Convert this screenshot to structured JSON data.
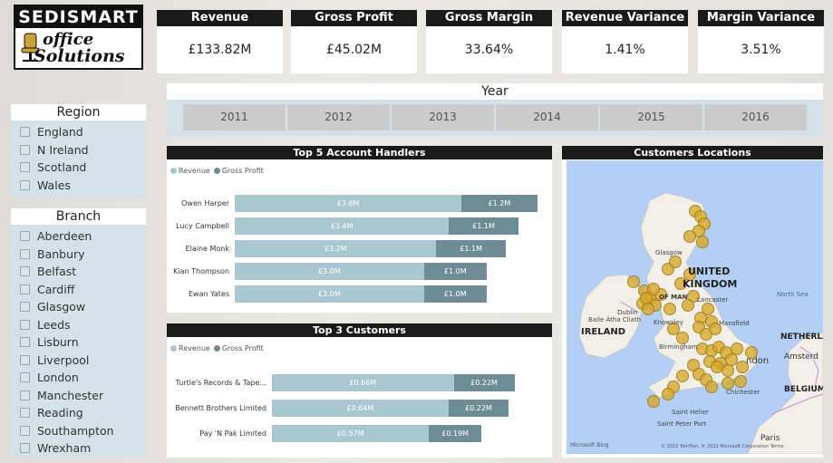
{
  "logo": {
    "top_text": "SEDISMART",
    "middle_text": "office",
    "bottom_text": "Solutions"
  },
  "kpis": [
    {
      "title": "Revenue",
      "value": "£133.82M"
    },
    {
      "title": "Gross Profit",
      "value": "£45.02M"
    },
    {
      "title": "Gross Margin",
      "value": "33.64%"
    },
    {
      "title": "Revenue Variance",
      "value": "1.41%"
    },
    {
      "title": "Margin Variance",
      "value": "3.51%"
    }
  ],
  "year_slicer": {
    "title": "Year",
    "options": [
      "2011",
      "2012",
      "2013",
      "2014",
      "2015",
      "2016"
    ]
  },
  "region_slicer": {
    "title": "Region",
    "items": [
      "England",
      "N Ireland",
      "Scotland",
      "Wales"
    ]
  },
  "branch_slicer": {
    "title": "Branch",
    "items": [
      "Aberdeen",
      "Banbury",
      "Belfast",
      "Cardiff",
      "Glasgow",
      "Leeds",
      "Lisburn",
      "Liverpool",
      "London",
      "Manchester",
      "Reading",
      "Southampton",
      "Wrexham"
    ]
  },
  "colors": {
    "revenue": "#a8c7d1",
    "gross_profit": "#6e8c96"
  },
  "chart_data": [
    {
      "type": "bar",
      "title": "Top 5 Account Handlers",
      "legend": [
        "Revenue",
        "Gross Profit"
      ],
      "categories": [
        "Owen Harper",
        "Lucy Campbell",
        "Elaine Monk",
        "Kian Thompson",
        "Ewan Yates"
      ],
      "series": [
        {
          "name": "Revenue",
          "values": [
            3.6,
            3.4,
            3.2,
            3.0,
            3.0
          ],
          "labels": [
            "£3.6M",
            "£3.4M",
            "£3.2M",
            "£3.0M",
            "£3.0M"
          ]
        },
        {
          "name": "Gross Profit",
          "values": [
            1.2,
            1.1,
            1.1,
            1.0,
            1.0
          ],
          "labels": [
            "£1.2M",
            "£1.1M",
            "£1.1M",
            "£1.0M",
            "£1.0M"
          ]
        }
      ],
      "stacked": true,
      "orientation": "horizontal"
    },
    {
      "type": "bar",
      "title": "Top 3 Customers",
      "legend": [
        "Revenue",
        "Gross Profit"
      ],
      "categories": [
        "Turtle's Records & Tape...",
        "Bennett Brothers Limited",
        "Pay 'N Pak Limited"
      ],
      "series": [
        {
          "name": "Revenue",
          "values": [
            0.66,
            0.64,
            0.57
          ],
          "labels": [
            "£0.66M",
            "£0.64M",
            "£0.57M"
          ]
        },
        {
          "name": "Gross Profit",
          "values": [
            0.22,
            0.22,
            0.19
          ],
          "labels": [
            "£0.22M",
            "£0.22M",
            "£0.19M"
          ]
        }
      ],
      "stacked": true,
      "orientation": "horizontal"
    }
  ],
  "map": {
    "title": "Customers Locations",
    "place_labels": {
      "uk": "UNITED",
      "uk2": "KINGDOM",
      "ireland": "IRELAND",
      "glasgow": "Glasgow",
      "dublin": "Dublin",
      "baile": "Baile Átha Cliath",
      "isle_of_man": "OF MAN",
      "knowsley": "Knowsley",
      "lancaster": "Lancaster",
      "mansfield": "Mansfield",
      "birmingham": "Birmingham",
      "london": "ndon",
      "chichester": "Chichester",
      "saint_helier": "Saint Helier",
      "saint_peter": "Saint Peter Port",
      "north_sea": "North Sea",
      "netherlands": "NETHERLA",
      "amsterdam": "Amsterd",
      "belgium": "BELGIUM",
      "paris": "Paris"
    },
    "attribution_left": "Microsoft Bing",
    "attribution_right": "© 2022 TomTom, © 2022 Microsoft Corporation  Terms"
  }
}
